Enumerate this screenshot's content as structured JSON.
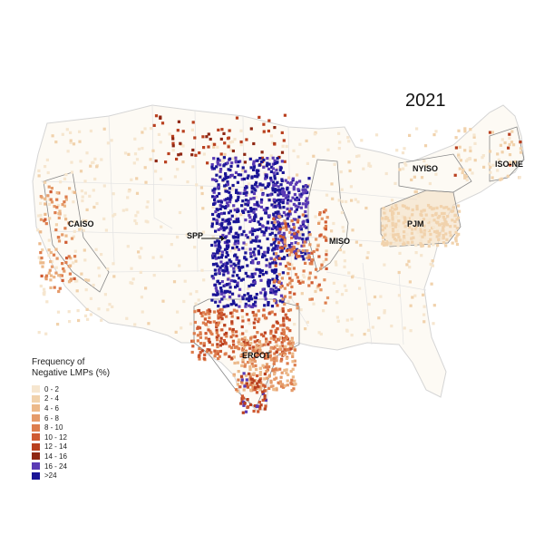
{
  "title": "2021",
  "regions": {
    "caiso": "CAISO",
    "spp": "SPP",
    "miso": "MISO",
    "pjm": "PJM",
    "nyiso": "NYISO",
    "isone": "ISO-NE",
    "ercot": "ERCOT"
  },
  "legend": {
    "title_line1": "Frequency of",
    "title_line2": "Negative LMPs (%)",
    "bins": [
      {
        "label": "0 - 2",
        "color": "#f6e6cf"
      },
      {
        "label": "2 - 4",
        "color": "#f1d2ac"
      },
      {
        "label": "4 - 6",
        "color": "#ecb98a"
      },
      {
        "label": "6 - 8",
        "color": "#e59b6a"
      },
      {
        "label": "8 - 10",
        "color": "#dd7d4d"
      },
      {
        "label": "10 - 12",
        "color": "#cf5a31"
      },
      {
        "label": "12 - 14",
        "color": "#b9401f"
      },
      {
        "label": "14 - 16",
        "color": "#8e2612"
      },
      {
        "label": "16 - 24",
        "color": "#5a3bb5"
      },
      {
        "label": ">24",
        "color": "#1a1596"
      }
    ]
  }
}
